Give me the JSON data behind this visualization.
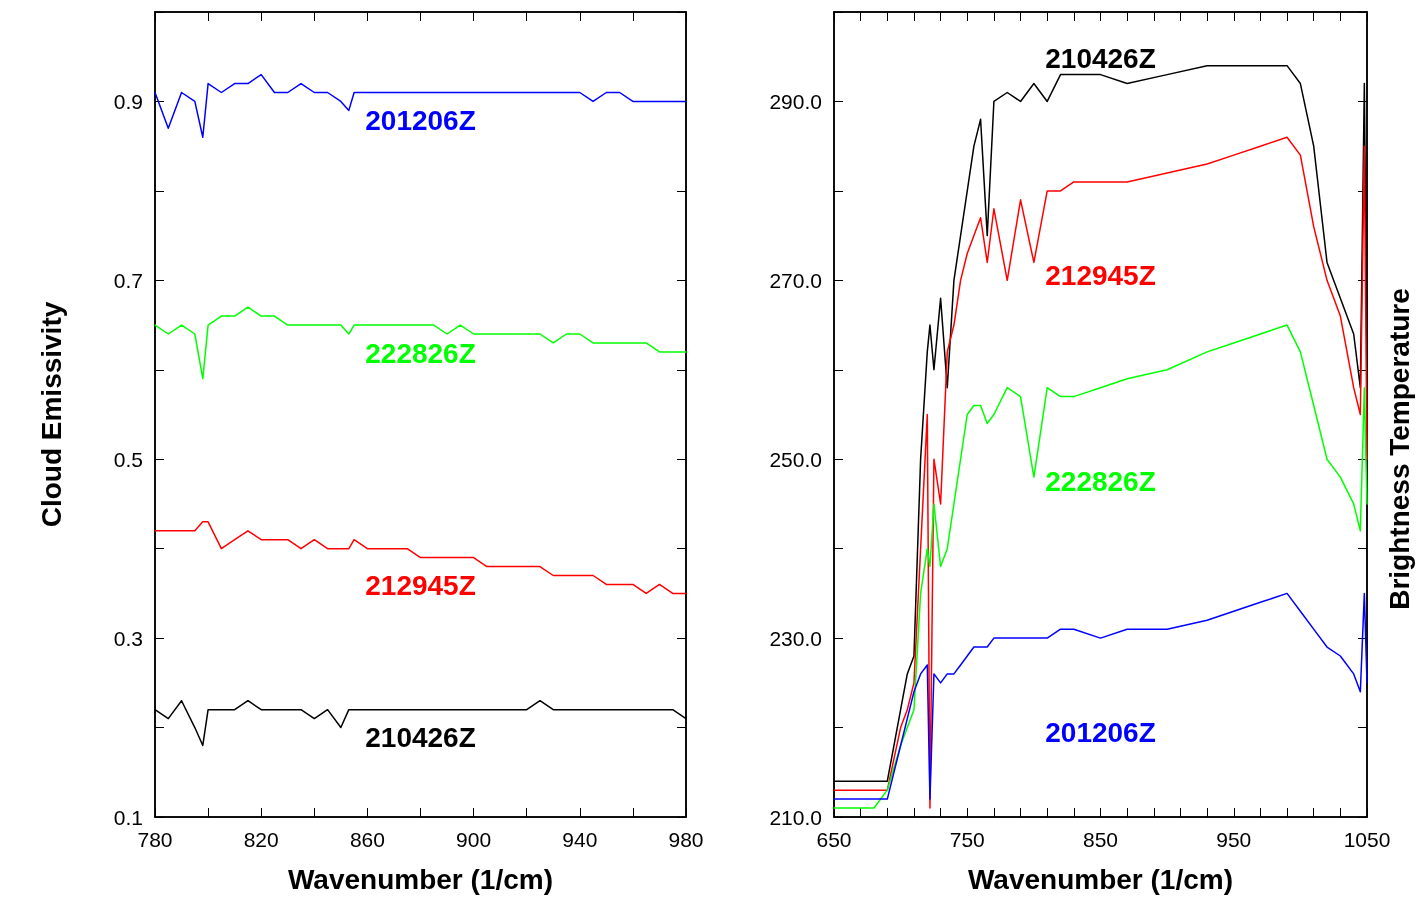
{
  "chart_data": [
    {
      "type": "line",
      "xlabel": "Wavenumber (1/cm)",
      "ylabel": "Cloud Emissivity",
      "grid": false,
      "marker": "none",
      "line_style": "solid",
      "x": [
        780,
        785,
        790,
        795,
        798,
        800,
        805,
        810,
        815,
        820,
        825,
        830,
        835,
        840,
        845,
        850,
        853,
        855,
        860,
        865,
        870,
        875,
        880,
        885,
        890,
        895,
        900,
        905,
        910,
        915,
        920,
        925,
        930,
        935,
        940,
        945,
        950,
        955,
        960,
        965,
        970,
        975,
        980
      ],
      "xlim": [
        780,
        980
      ],
      "xticks": [
        780,
        {
          "value": 800,
          "label": null
        },
        820,
        {
          "value": 840,
          "label": null
        },
        860,
        {
          "value": 880,
          "label": null
        },
        900,
        {
          "value": 920,
          "label": null
        },
        940,
        {
          "value": 960,
          "label": null
        },
        980
      ],
      "ylim": [
        0.1,
        1.0
      ],
      "yticks": [
        0.1,
        {
          "value": 0.2,
          "label": null
        },
        0.3,
        {
          "value": 0.4,
          "label": null
        },
        0.5,
        {
          "value": 0.6,
          "label": null
        },
        0.7,
        {
          "value": 0.8,
          "label": null
        },
        0.9,
        {
          "value": 1.0,
          "label": null
        }
      ],
      "series": [
        {
          "name": "201206Z",
          "color": "#0000ff",
          "values": [
            0.91,
            0.87,
            0.91,
            0.9,
            0.86,
            0.92,
            0.91,
            0.92,
            0.92,
            0.93,
            0.91,
            0.91,
            0.92,
            0.91,
            0.91,
            0.9,
            0.89,
            0.91,
            0.91,
            0.91,
            0.91,
            0.91,
            0.91,
            0.91,
            0.91,
            0.91,
            0.91,
            0.91,
            0.91,
            0.91,
            0.91,
            0.91,
            0.91,
            0.91,
            0.91,
            0.9,
            0.91,
            0.91,
            0.9,
            0.9,
            0.9,
            0.9,
            0.9
          ]
        },
        {
          "name": "222826Z",
          "color": "#00ff00",
          "values": [
            0.65,
            0.64,
            0.65,
            0.64,
            0.59,
            0.65,
            0.66,
            0.66,
            0.67,
            0.66,
            0.66,
            0.65,
            0.65,
            0.65,
            0.65,
            0.65,
            0.64,
            0.65,
            0.65,
            0.65,
            0.65,
            0.65,
            0.65,
            0.65,
            0.64,
            0.65,
            0.64,
            0.64,
            0.64,
            0.64,
            0.64,
            0.64,
            0.63,
            0.64,
            0.64,
            0.63,
            0.63,
            0.63,
            0.63,
            0.63,
            0.62,
            0.62,
            0.62
          ]
        },
        {
          "name": "212945Z",
          "color": "#ff0000",
          "values": [
            0.42,
            0.42,
            0.42,
            0.42,
            0.43,
            0.43,
            0.4,
            0.41,
            0.42,
            0.41,
            0.41,
            0.41,
            0.4,
            0.41,
            0.4,
            0.4,
            0.4,
            0.41,
            0.4,
            0.4,
            0.4,
            0.4,
            0.39,
            0.39,
            0.39,
            0.39,
            0.39,
            0.38,
            0.38,
            0.38,
            0.38,
            0.38,
            0.37,
            0.37,
            0.37,
            0.37,
            0.36,
            0.36,
            0.36,
            0.35,
            0.36,
            0.35,
            0.35
          ]
        },
        {
          "name": "210426Z",
          "color": "#000000",
          "values": [
            0.22,
            0.21,
            0.23,
            0.2,
            0.18,
            0.22,
            0.22,
            0.22,
            0.23,
            0.22,
            0.22,
            0.22,
            0.22,
            0.21,
            0.22,
            0.2,
            0.22,
            0.22,
            0.22,
            0.22,
            0.22,
            0.22,
            0.22,
            0.22,
            0.22,
            0.22,
            0.22,
            0.22,
            0.22,
            0.22,
            0.22,
            0.23,
            0.22,
            0.22,
            0.22,
            0.22,
            0.22,
            0.22,
            0.22,
            0.22,
            0.22,
            0.22,
            0.21
          ]
        }
      ]
    },
    {
      "type": "line",
      "xlabel": "Wavenumber (1/cm)",
      "y2label": "Brightness Temperature",
      "grid": false,
      "marker": "none",
      "line_style": "solid",
      "x": [
        650,
        660,
        670,
        680,
        690,
        700,
        705,
        710,
        715,
        720,
        722,
        725,
        730,
        735,
        740,
        745,
        750,
        755,
        760,
        765,
        770,
        780,
        790,
        800,
        810,
        820,
        830,
        850,
        870,
        900,
        930,
        950,
        970,
        990,
        1000,
        1010,
        1020,
        1030,
        1040,
        1045,
        1048,
        1050
      ],
      "xlim": [
        650,
        1050
      ],
      "xticks": [
        650,
        {
          "value": 670,
          "label": null
        },
        {
          "value": 690,
          "label": null
        },
        {
          "value": 710,
          "label": null
        },
        {
          "value": 730,
          "label": null
        },
        750,
        {
          "value": 770,
          "label": null
        },
        {
          "value": 790,
          "label": null
        },
        {
          "value": 810,
          "label": null
        },
        {
          "value": 830,
          "label": null
        },
        850,
        {
          "value": 870,
          "label": null
        },
        {
          "value": 890,
          "label": null
        },
        {
          "value": 910,
          "label": null
        },
        {
          "value": 930,
          "label": null
        },
        950,
        {
          "value": 970,
          "label": null
        },
        {
          "value": 990,
          "label": null
        },
        {
          "value": 1010,
          "label": null
        },
        {
          "value": 1030,
          "label": null
        },
        1050
      ],
      "ylim": [
        210,
        300
      ],
      "yticks": [
        {
          "value": 210,
          "label": "210.0"
        },
        {
          "value": 220,
          "label": null
        },
        {
          "value": 230,
          "label": "230.0"
        },
        {
          "value": 240,
          "label": null
        },
        {
          "value": 250,
          "label": "250.0"
        },
        {
          "value": 260,
          "label": null
        },
        {
          "value": 270,
          "label": "270.0"
        },
        {
          "value": 280,
          "label": null
        },
        {
          "value": 290,
          "label": "290.0"
        },
        {
          "value": 300,
          "label": null
        }
      ],
      "series": [
        {
          "name": "210426Z",
          "color": "#000000",
          "values": [
            214,
            214,
            214,
            214,
            214,
            222,
            226,
            228,
            250,
            262,
            265,
            260,
            268,
            258,
            270,
            275,
            280,
            285,
            288,
            275,
            290,
            291,
            290,
            292,
            290,
            293,
            293,
            293,
            292,
            293,
            294,
            294,
            294,
            294,
            292,
            285,
            272,
            268,
            264,
            258,
            292,
            260
          ]
        },
        {
          "name": "212945Z",
          "color": "#ff0000",
          "values": [
            213,
            213,
            213,
            213,
            213,
            220,
            222,
            225,
            240,
            255,
            211,
            250,
            245,
            262,
            265,
            270,
            273,
            275,
            277,
            272,
            278,
            270,
            279,
            272,
            280,
            280,
            281,
            281,
            281,
            282,
            283,
            284,
            285,
            286,
            284,
            276,
            270,
            266,
            258,
            255,
            285,
            250
          ]
        },
        {
          "name": "222826Z",
          "color": "#00ff00",
          "values": [
            211,
            211,
            211,
            211,
            213,
            218,
            220,
            222,
            235,
            240,
            238,
            245,
            238,
            240,
            245,
            250,
            255,
            256,
            256,
            254,
            255,
            258,
            257,
            248,
            258,
            257,
            257,
            258,
            259,
            260,
            262,
            263,
            264,
            265,
            262,
            256,
            250,
            248,
            245,
            242,
            258,
            245
          ]
        },
        {
          "name": "201206Z",
          "color": "#0000ff",
          "values": [
            212,
            212,
            212,
            212,
            212,
            218,
            221,
            224,
            226,
            227,
            212,
            226,
            225,
            226,
            226,
            227,
            228,
            229,
            229,
            229,
            230,
            230,
            230,
            230,
            230,
            231,
            231,
            230,
            231,
            231,
            232,
            233,
            234,
            235,
            233,
            231,
            229,
            228,
            226,
            224,
            235,
            225
          ]
        }
      ]
    }
  ]
}
